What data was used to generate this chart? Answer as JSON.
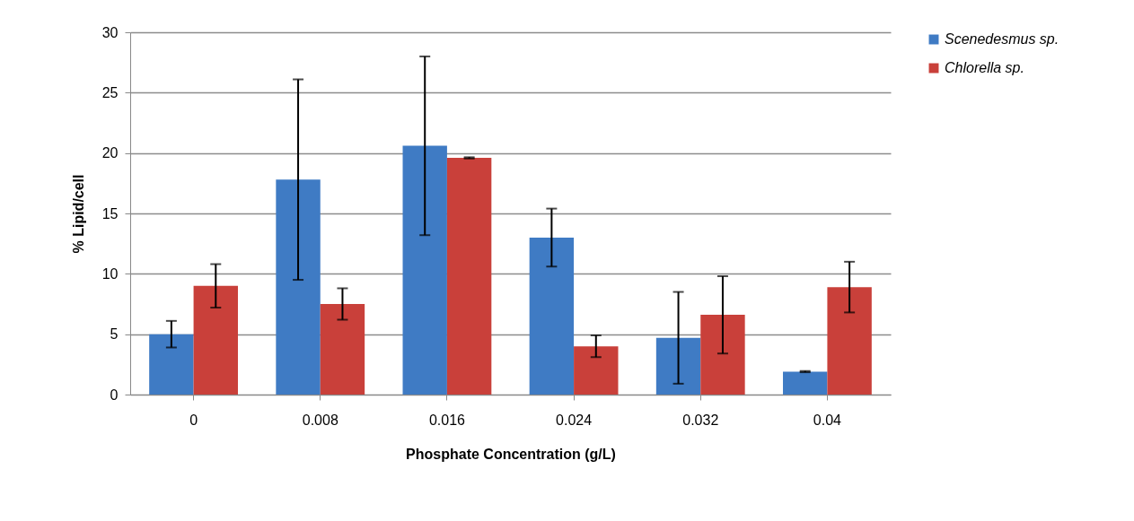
{
  "chart_data": {
    "type": "bar",
    "xlabel": "Phosphate Concentration (g/L)",
    "ylabel": "% Lipid/cell",
    "categories": [
      "0",
      "0.008",
      "0.016",
      "0.024",
      "0.032",
      "0.04"
    ],
    "series": [
      {
        "name": "Scenedesmus sp.",
        "color": "#3f7bc4",
        "values": [
          5.0,
          17.8,
          20.6,
          13.0,
          4.7,
          1.9
        ],
        "errors": [
          1.1,
          8.3,
          7.4,
          2.4,
          3.8,
          0.05
        ]
      },
      {
        "name": "Chlorella sp.",
        "color": "#c9403a",
        "values": [
          9.0,
          7.5,
          19.6,
          4.0,
          6.6,
          8.9
        ],
        "errors": [
          1.8,
          1.3,
          0.05,
          0.9,
          3.2,
          2.1
        ]
      }
    ],
    "ylim": [
      0,
      30
    ],
    "yticks": [
      0,
      5,
      10,
      15,
      20,
      25,
      30
    ],
    "grid": "y",
    "legend": "right"
  }
}
